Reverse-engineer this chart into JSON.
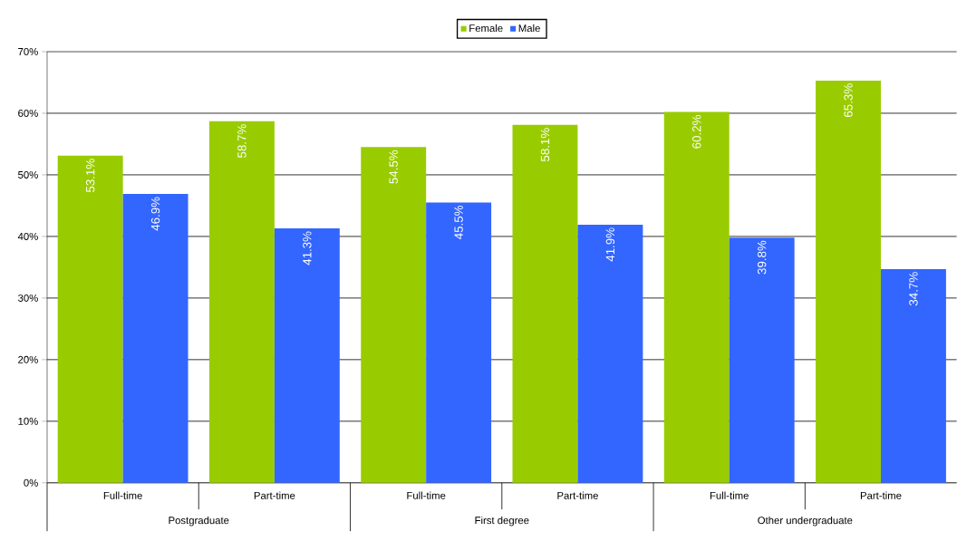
{
  "chart_data": {
    "type": "bar",
    "categories": [
      "Full-time",
      "Part-time",
      "Full-time",
      "Part-time",
      "Full-time",
      "Part-time"
    ],
    "series": [
      {
        "name": "Female",
        "color": "#99cc00",
        "values": [
          53.1,
          58.7,
          54.5,
          58.1,
          60.2,
          65.3
        ],
        "value_labels": [
          "53.1%",
          "58.7%",
          "54.5%",
          "58.1%",
          "60.2%",
          "65.3%"
        ]
      },
      {
        "name": "Male",
        "color": "#3366ff",
        "values": [
          46.9,
          41.3,
          45.5,
          41.9,
          39.8,
          34.7
        ],
        "value_labels": [
          "46.9%",
          "41.3%",
          "45.5%",
          "41.9%",
          "39.8%",
          "34.7%"
        ]
      }
    ],
    "annotations": [
      "Postgraduate",
      "First degree",
      "Other undergraduate"
    ],
    "ylim": [
      0,
      70
    ],
    "yticks": [
      {
        "value": 0,
        "label": "0%"
      },
      {
        "value": 10,
        "label": "10%"
      },
      {
        "value": 20,
        "label": "20%"
      },
      {
        "value": 30,
        "label": "30%"
      },
      {
        "value": 40,
        "label": "40%"
      },
      {
        "value": 50,
        "label": "50%"
      },
      {
        "value": 60,
        "label": "60%"
      },
      {
        "value": 70,
        "label": "70%"
      }
    ],
    "grid": "y",
    "legend": "top"
  }
}
